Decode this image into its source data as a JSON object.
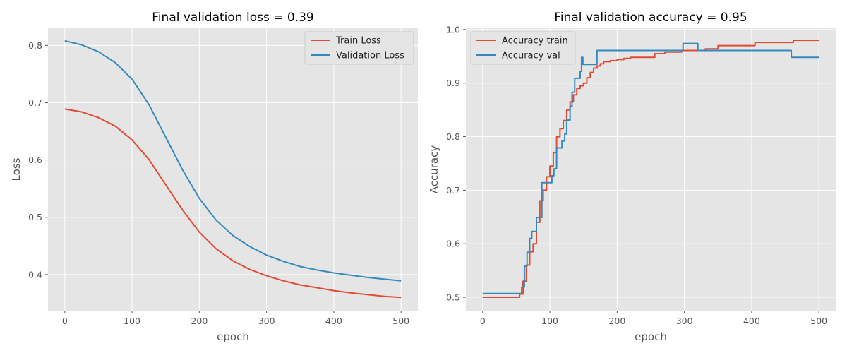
{
  "chart_data": [
    {
      "type": "line",
      "title": "Final validation loss = 0.39",
      "xlabel": "epoch",
      "ylabel": "Loss",
      "xlim": [
        -25,
        525
      ],
      "ylim": [
        0.337,
        0.83
      ],
      "xticks": [
        0,
        100,
        200,
        300,
        400,
        500
      ],
      "yticks": [
        0.4,
        0.5,
        0.6,
        0.7,
        0.8
      ],
      "ytick_labels": [
        "0.4",
        "0.5",
        "0.6",
        "0.7",
        "0.8"
      ],
      "grid": true,
      "legend_position": "top-right",
      "x": [
        0,
        25,
        50,
        75,
        100,
        125,
        150,
        175,
        200,
        225,
        250,
        275,
        300,
        325,
        350,
        375,
        400,
        425,
        450,
        475,
        500
      ],
      "series": [
        {
          "name": "Train Loss",
          "color": "#E24A33",
          "values": [
            0.689,
            0.684,
            0.674,
            0.659,
            0.635,
            0.601,
            0.557,
            0.513,
            0.474,
            0.445,
            0.424,
            0.409,
            0.398,
            0.389,
            0.382,
            0.377,
            0.372,
            0.368,
            0.365,
            0.362,
            0.36
          ]
        },
        {
          "name": "Validation Loss",
          "color": "#348ABD",
          "values": [
            0.808,
            0.801,
            0.789,
            0.77,
            0.741,
            0.697,
            0.64,
            0.583,
            0.533,
            0.495,
            0.468,
            0.449,
            0.434,
            0.423,
            0.414,
            0.408,
            0.403,
            0.399,
            0.395,
            0.392,
            0.389
          ]
        }
      ]
    },
    {
      "type": "line",
      "title": "Final validation accuracy = 0.95",
      "xlabel": "epoch",
      "ylabel": "Accuracy",
      "xlim": [
        -25,
        525
      ],
      "ylim": [
        0.475,
        1.0025
      ],
      "xticks": [
        0,
        100,
        200,
        300,
        400,
        500
      ],
      "yticks": [
        0.5,
        0.6,
        0.7,
        0.8,
        0.9,
        1.0
      ],
      "ytick_labels": [
        "0.5",
        "0.6",
        "0.7",
        "0.8",
        "0.9",
        "1.0"
      ],
      "grid": true,
      "legend_position": "top-left",
      "series": [
        {
          "name": "Accuracy train",
          "color": "#E24A33",
          "points": [
            [
              0,
              0.5
            ],
            [
              50,
              0.5
            ],
            [
              55,
              0.506
            ],
            [
              60,
              0.53
            ],
            [
              65,
              0.56
            ],
            [
              70,
              0.585
            ],
            [
              75,
              0.6
            ],
            [
              80,
              0.64
            ],
            [
              85,
              0.68
            ],
            [
              90,
              0.7
            ],
            [
              95,
              0.725
            ],
            [
              100,
              0.745
            ],
            [
              105,
              0.77
            ],
            [
              110,
              0.8
            ],
            [
              115,
              0.815
            ],
            [
              120,
              0.83
            ],
            [
              125,
              0.85
            ],
            [
              130,
              0.865
            ],
            [
              135,
              0.878
            ],
            [
              140,
              0.89
            ],
            [
              145,
              0.895
            ],
            [
              150,
              0.9
            ],
            [
              155,
              0.91
            ],
            [
              160,
              0.92
            ],
            [
              165,
              0.928
            ],
            [
              170,
              0.932
            ],
            [
              175,
              0.936
            ],
            [
              180,
              0.94
            ],
            [
              190,
              0.942
            ],
            [
              200,
              0.944
            ],
            [
              210,
              0.946
            ],
            [
              220,
              0.948
            ],
            [
              255,
              0.948
            ],
            [
              256,
              0.955
            ],
            [
              270,
              0.955
            ],
            [
              271,
              0.958
            ],
            [
              295,
              0.958
            ],
            [
              296,
              0.961
            ],
            [
              330,
              0.961
            ],
            [
              331,
              0.964
            ],
            [
              345,
              0.964
            ],
            [
              350,
              0.97
            ],
            [
              400,
              0.97
            ],
            [
              405,
              0.976
            ],
            [
              460,
              0.976
            ],
            [
              462,
              0.98
            ],
            [
              500,
              0.98
            ]
          ]
        },
        {
          "name": "Accuracy val",
          "color": "#348ABD",
          "points": [
            [
              0,
              0.507
            ],
            [
              55,
              0.507
            ],
            [
              58,
              0.519
            ],
            [
              62,
              0.558
            ],
            [
              66,
              0.584
            ],
            [
              70,
              0.61
            ],
            [
              73,
              0.623
            ],
            [
              78,
              0.623
            ],
            [
              80,
              0.649
            ],
            [
              85,
              0.649
            ],
            [
              88,
              0.714
            ],
            [
              100,
              0.714
            ],
            [
              103,
              0.727
            ],
            [
              106,
              0.74
            ],
            [
              110,
              0.779
            ],
            [
              115,
              0.779
            ],
            [
              118,
              0.792
            ],
            [
              122,
              0.805
            ],
            [
              125,
              0.831
            ],
            [
              130,
              0.857
            ],
            [
              133,
              0.883
            ],
            [
              137,
              0.909
            ],
            [
              141,
              0.909
            ],
            [
              145,
              0.922
            ],
            [
              147,
              0.948
            ],
            [
              149,
              0.935
            ],
            [
              168,
              0.935
            ],
            [
              170,
              0.961
            ],
            [
              296,
              0.961
            ],
            [
              298,
              0.974
            ],
            [
              318,
              0.974
            ],
            [
              320,
              0.961
            ],
            [
              457,
              0.961
            ],
            [
              459,
              0.948
            ],
            [
              500,
              0.948
            ]
          ]
        }
      ]
    }
  ]
}
